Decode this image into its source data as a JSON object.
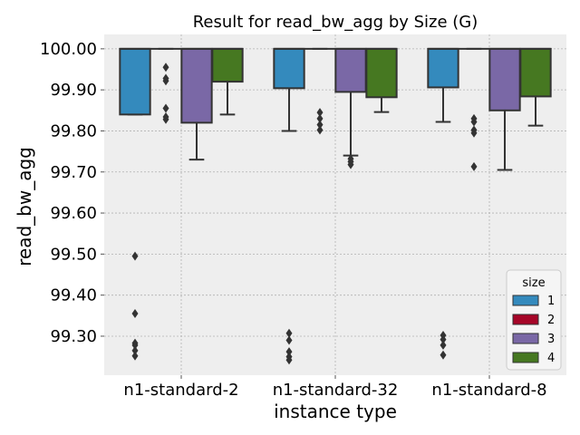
{
  "chart_data": {
    "type": "box",
    "title": "Result for read_bw_agg by Size (G)",
    "xlabel": "instance type",
    "ylabel": "read_bw_agg",
    "ylim": [
      99.205,
      100.035
    ],
    "yticks": [
      99.3,
      99.4,
      99.5,
      99.6,
      99.7,
      99.8,
      99.9,
      100.0
    ],
    "ytick_labels": [
      "99.30",
      "99.40",
      "99.50",
      "99.60",
      "99.70",
      "99.80",
      "99.90",
      "100.00"
    ],
    "grid": true,
    "legend": {
      "title": "size",
      "placement": "lower right",
      "entries": [
        "1",
        "2",
        "3",
        "4"
      ]
    },
    "categories": [
      "n1-standard-2",
      "n1-standard-32",
      "n1-standard-8"
    ],
    "colors": {
      "1": "#348abd",
      "2": "#a60628",
      "3": "#7a68a6",
      "4": "#467821"
    },
    "boxes": [
      {
        "category": "n1-standard-2",
        "size": "1",
        "q1": 99.84,
        "median": 100.0,
        "q3": 100.0,
        "whisker_low": 99.84,
        "whisker_high": 100.0,
        "outliers": [
          99.495,
          99.355,
          99.283,
          99.278,
          99.265,
          99.252
        ]
      },
      {
        "category": "n1-standard-2",
        "size": "2",
        "q1": 100.0,
        "median": 100.0,
        "q3": 100.0,
        "whisker_low": 100.0,
        "whisker_high": 100.0,
        "outliers": [
          99.955,
          99.928,
          99.922,
          99.855,
          99.834,
          99.828
        ]
      },
      {
        "category": "n1-standard-2",
        "size": "3",
        "q1": 99.82,
        "median": 100.0,
        "q3": 100.0,
        "whisker_low": 99.73,
        "whisker_high": 100.0,
        "outliers": []
      },
      {
        "category": "n1-standard-2",
        "size": "4",
        "q1": 99.92,
        "median": 100.0,
        "q3": 100.0,
        "whisker_low": 99.84,
        "whisker_high": 100.0,
        "outliers": []
      },
      {
        "category": "n1-standard-32",
        "size": "1",
        "q1": 99.904,
        "median": 100.0,
        "q3": 100.0,
        "whisker_low": 99.8,
        "whisker_high": 100.0,
        "outliers": [
          99.307,
          99.29,
          99.262,
          99.25,
          99.242
        ]
      },
      {
        "category": "n1-standard-32",
        "size": "2",
        "q1": 100.0,
        "median": 100.0,
        "q3": 100.0,
        "whisker_low": 100.0,
        "whisker_high": 100.0,
        "outliers": [
          99.845,
          99.83,
          99.815,
          99.802
        ]
      },
      {
        "category": "n1-standard-32",
        "size": "3",
        "q1": 99.895,
        "median": 100.0,
        "q3": 100.0,
        "whisker_low": 99.74,
        "whisker_high": 100.0,
        "outliers": [
          99.732,
          99.725,
          99.718
        ]
      },
      {
        "category": "n1-standard-32",
        "size": "4",
        "q1": 99.882,
        "median": 100.0,
        "q3": 100.0,
        "whisker_low": 99.846,
        "whisker_high": 100.0,
        "outliers": []
      },
      {
        "category": "n1-standard-8",
        "size": "1",
        "q1": 99.906,
        "median": 100.0,
        "q3": 100.0,
        "whisker_low": 99.822,
        "whisker_high": 100.0,
        "outliers": [
          99.302,
          99.292,
          99.278,
          99.254
        ]
      },
      {
        "category": "n1-standard-8",
        "size": "2",
        "q1": 100.0,
        "median": 100.0,
        "q3": 100.0,
        "whisker_low": 100.0,
        "whisker_high": 100.0,
        "outliers": [
          99.83,
          99.822,
          99.802,
          99.795,
          99.713
        ]
      },
      {
        "category": "n1-standard-8",
        "size": "3",
        "q1": 99.85,
        "median": 100.0,
        "q3": 100.0,
        "whisker_low": 99.705,
        "whisker_high": 100.0,
        "outliers": []
      },
      {
        "category": "n1-standard-8",
        "size": "4",
        "q1": 99.884,
        "median": 100.0,
        "q3": 100.0,
        "whisker_low": 99.813,
        "whisker_high": 100.0,
        "outliers": []
      }
    ]
  }
}
